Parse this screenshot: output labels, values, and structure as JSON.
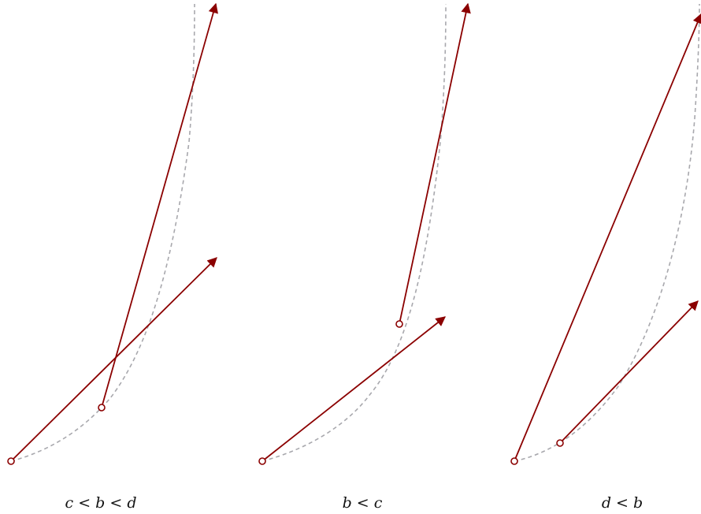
{
  "panels": [
    {
      "caption": "c < b < d"
    },
    {
      "caption": "b < c"
    },
    {
      "caption": "d < b"
    }
  ],
  "colors": {
    "arrow": "#8b0000",
    "curve": "#a8a8ad",
    "text": "#111111"
  }
}
